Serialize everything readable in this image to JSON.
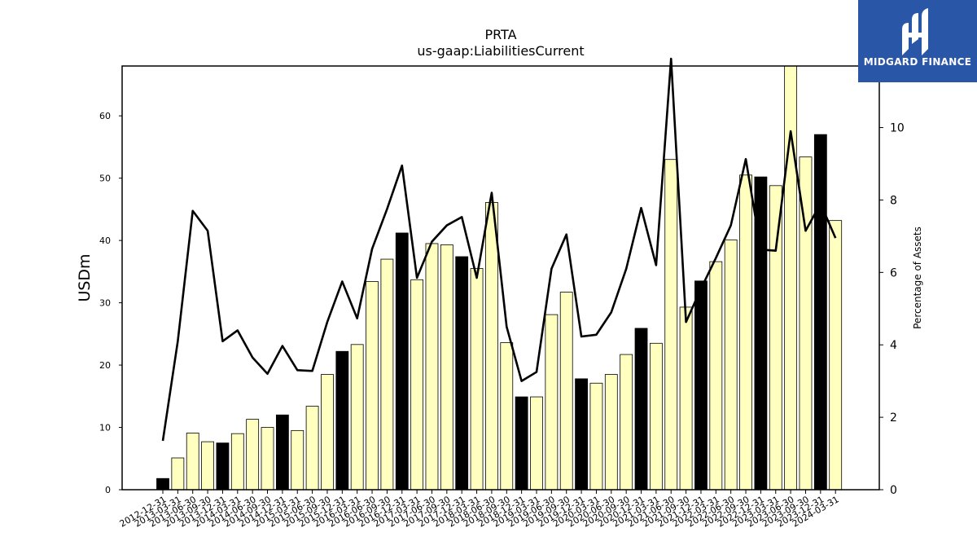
{
  "chart_data": {
    "type": "bar",
    "title": "PRTA",
    "subtitle": "us-gaap:LiabilitiesCurrent",
    "ylabel": "USDm",
    "y2label": "Percentage of Assets",
    "ylim": [
      0,
      68
    ],
    "y2lim": [
      0,
      11.7
    ],
    "yticks": [
      0,
      10,
      20,
      30,
      40,
      50,
      60
    ],
    "y2ticks": [
      0,
      2,
      4,
      6,
      8,
      10
    ],
    "categories": [
      "2012-12-31",
      "2013-03-31",
      "2013-06-30",
      "2013-09-30",
      "2013-12-31",
      "2014-03-31",
      "2014-06-30",
      "2014-09-30",
      "2014-12-31",
      "2015-03-31",
      "2015-06-30",
      "2015-09-30",
      "2015-12-31",
      "2016-03-31",
      "2016-06-30",
      "2016-09-30",
      "2016-12-31",
      "2017-03-31",
      "2017-06-30",
      "2017-09-30",
      "2017-12-31",
      "2018-03-31",
      "2018-06-30",
      "2018-09-30",
      "2018-12-31",
      "2019-03-31",
      "2019-06-30",
      "2019-09-30",
      "2019-12-31",
      "2020-03-31",
      "2020-06-30",
      "2020-09-30",
      "2020-12-31",
      "2021-03-31",
      "2021-06-30",
      "2021-09-30",
      "2021-12-31",
      "2022-03-31",
      "2022-06-30",
      "2022-09-30",
      "2022-12-31",
      "2023-03-31",
      "2023-06-30",
      "2023-09-30",
      "2023-12-31",
      "2024-03-31"
    ],
    "series": [
      {
        "type": "bar",
        "values": [
          1.8,
          5.1,
          9.1,
          7.7,
          7.5,
          9.0,
          11.3,
          10.0,
          12.0,
          9.5,
          13.4,
          18.5,
          22.2,
          23.3,
          33.4,
          37.0,
          41.2,
          33.7,
          39.5,
          39.3,
          37.4,
          35.5,
          46.1,
          23.6,
          14.9,
          14.9,
          28.1,
          31.7,
          17.8,
          17.1,
          18.5,
          21.7,
          25.9,
          23.5,
          53.0,
          29.3,
          33.5,
          36.6,
          40.1,
          50.5,
          50.2,
          48.8,
          68.0,
          53.4,
          57.0,
          43.2
        ],
        "year_end_flags": [
          1,
          0,
          0,
          0,
          1,
          0,
          0,
          0,
          1,
          0,
          0,
          0,
          1,
          0,
          0,
          0,
          1,
          0,
          0,
          0,
          1,
          0,
          0,
          0,
          1,
          0,
          0,
          0,
          1,
          0,
          0,
          0,
          1,
          0,
          0,
          0,
          1,
          0,
          0,
          0,
          1,
          0,
          0,
          0,
          1,
          0
        ]
      },
      {
        "type": "line",
        "axis": "right",
        "values": [
          1.35,
          4.1,
          7.7,
          7.15,
          4.1,
          4.4,
          3.65,
          3.2,
          3.97,
          3.3,
          3.28,
          4.63,
          5.75,
          4.73,
          6.65,
          7.75,
          8.95,
          5.85,
          6.85,
          7.3,
          7.53,
          5.85,
          8.2,
          4.5,
          3.0,
          3.25,
          6.1,
          7.05,
          4.23,
          4.28,
          4.9,
          6.1,
          7.78,
          6.2,
          11.9,
          4.63,
          5.55,
          6.4,
          7.3,
          9.13,
          6.63,
          6.6,
          9.9,
          7.15,
          7.9,
          6.95
        ]
      }
    ],
    "colors": {
      "bar_regular": "#ffffc0",
      "bar_highlight": "#000000",
      "line": "#000000"
    }
  },
  "logo": {
    "text": "MIDGARD FINANCE"
  }
}
